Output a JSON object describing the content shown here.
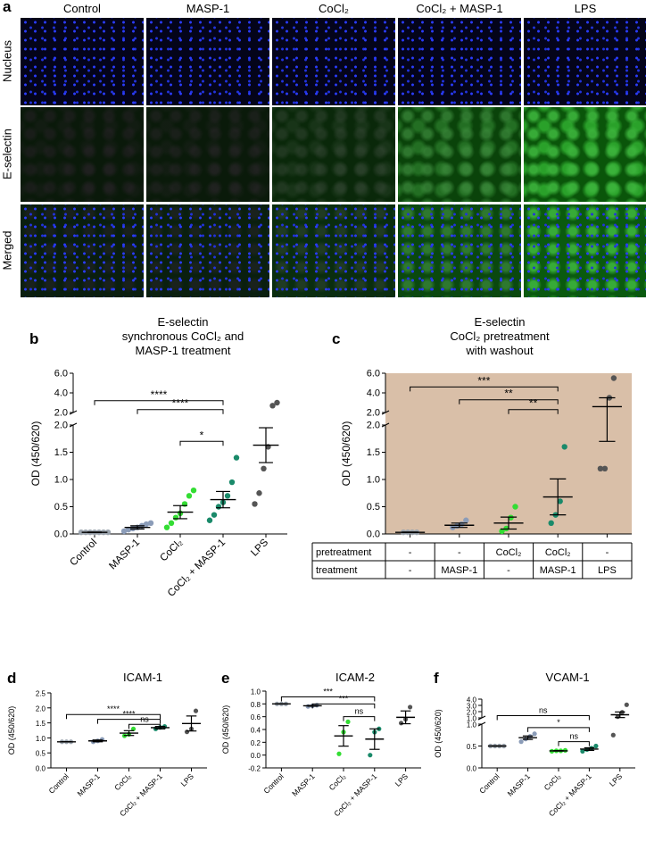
{
  "panel_a": {
    "letter": "a",
    "columns": [
      "Control",
      "MASP-1",
      "CoCl₂",
      "CoCl₂ + MASP-1",
      "LPS"
    ],
    "rows": [
      "Nucleus",
      "E-selectin",
      "Merged"
    ],
    "e_selectin_intensity": [
      0.0,
      0.02,
      0.25,
      0.7,
      1.0
    ]
  },
  "chart_data": [
    {
      "id": "b",
      "letter": "b",
      "type": "scatter",
      "title_lines": [
        "E-selectin",
        "synchronous CoCl₂ and",
        "MASP-1 treatment"
      ],
      "ylabel": "OD (450/620)",
      "categories": [
        "Control",
        "MASP-1",
        "CoCl₂",
        "CoCl₂ + MASP-1",
        "LPS"
      ],
      "colors": [
        "#9aa3ad",
        "#8b9cb8",
        "#33dd33",
        "#1a8a6a",
        "#555555"
      ],
      "axis_lower": {
        "range": [
          0,
          2.0
        ],
        "ticks": [
          "0.0",
          "0.5",
          "1.0",
          "1.5",
          "2.0"
        ]
      },
      "axis_upper": {
        "range": [
          2.0,
          6.0
        ],
        "ticks": [
          "2.0",
          "4.0",
          "6.0"
        ]
      },
      "points": [
        [
          0.03,
          0.03,
          0.03,
          0.03,
          0.03,
          0.03,
          0.03
        ],
        [
          0.05,
          0.08,
          0.1,
          0.12,
          0.15,
          0.18,
          0.2
        ],
        [
          0.12,
          0.2,
          0.3,
          0.38,
          0.55,
          0.7,
          0.8
        ],
        [
          0.25,
          0.35,
          0.5,
          0.58,
          0.7,
          0.95,
          1.4
        ],
        [
          0.55,
          0.75,
          1.2,
          1.6,
          2.7,
          3.0
        ]
      ],
      "means": [
        0.03,
        0.12,
        0.4,
        0.63,
        1.63
      ],
      "sem": [
        0.005,
        0.03,
        0.12,
        0.15,
        0.32
      ],
      "significance": [
        {
          "from": 0,
          "to": 3,
          "label": "****",
          "y": 3.2
        },
        {
          "from": 1,
          "to": 3,
          "label": "****",
          "y": 2.3
        },
        {
          "from": 2,
          "to": 3,
          "label": "*",
          "y": 1.7
        }
      ]
    },
    {
      "id": "c",
      "letter": "c",
      "type": "scatter",
      "title_lines": [
        "E-selectin",
        "CoCl₂ pretreatment",
        "with washout"
      ],
      "ylabel": "OD (450/620)",
      "background": "#d9bfa8",
      "categories": [
        "-",
        "MASP-1",
        "-",
        "MASP-1",
        "LPS"
      ],
      "pretreatment_label": "pretreatment",
      "treatment_label": "treatment",
      "pretreatment": [
        "-",
        "-",
        "CoCl₂",
        "CoCl₂",
        "-"
      ],
      "treatment": [
        "-",
        "MASP-1",
        "-",
        "MASP-1",
        "LPS"
      ],
      "colors": [
        "#9aa3ad",
        "#8b9cb8",
        "#33dd33",
        "#1a8a6a",
        "#555555"
      ],
      "axis_lower": {
        "range": [
          0,
          2.0
        ],
        "ticks": [
          "0.0",
          "0.5",
          "1.0",
          "1.5",
          "2.0"
        ]
      },
      "axis_upper": {
        "range": [
          2.0,
          6.0
        ],
        "ticks": [
          "2.0",
          "4.0",
          "6.0"
        ]
      },
      "points": [
        [
          0.03,
          0.03,
          0.03,
          0.03
        ],
        [
          0.12,
          0.15,
          0.18,
          0.25
        ],
        [
          0.05,
          0.1,
          0.3,
          0.5
        ],
        [
          0.2,
          0.35,
          0.6,
          1.6
        ],
        [
          1.2,
          1.2,
          3.5,
          5.5
        ]
      ],
      "means": [
        0.03,
        0.16,
        0.2,
        0.68,
        2.6
      ],
      "sem": [
        0.005,
        0.04,
        0.11,
        0.33,
        0.9
      ],
      "significance": [
        {
          "from": 0,
          "to": 3,
          "label": "***",
          "y": 4.6
        },
        {
          "from": 1,
          "to": 3,
          "label": "**",
          "y": 3.3
        },
        {
          "from": 2,
          "to": 3,
          "label": "**",
          "y": 2.3
        }
      ]
    },
    {
      "id": "d",
      "letter": "d",
      "type": "scatter",
      "title": "ICAM-1",
      "ylabel": "OD (450/620)",
      "categories": [
        "Control",
        "MASP-1",
        "CoCl₂",
        "CoCl₂ + MASP-1",
        "LPS"
      ],
      "colors": [
        "#9aa3ad",
        "#8b9cb8",
        "#33dd33",
        "#1a8a6a",
        "#555555"
      ],
      "ylim": [
        0,
        2.5
      ],
      "ticks": [
        "0.0",
        "0.5",
        "1.0",
        "1.5",
        "2.0",
        "2.5"
      ],
      "points": [
        [
          0.87,
          0.87,
          0.87
        ],
        [
          0.87,
          0.9,
          0.95
        ],
        [
          1.07,
          1.12,
          1.3
        ],
        [
          1.3,
          1.35,
          1.38
        ],
        [
          1.2,
          1.3,
          1.9
        ]
      ],
      "means": [
        0.87,
        0.9,
        1.16,
        1.34,
        1.48
      ],
      "sem": [
        0.003,
        0.03,
        0.08,
        0.04,
        0.25
      ],
      "significance": [
        {
          "from": 0,
          "to": 3,
          "label": "****",
          "y": 1.78
        },
        {
          "from": 1,
          "to": 3,
          "label": "****",
          "y": 1.62
        },
        {
          "from": 2,
          "to": 3,
          "label": "ns",
          "y": 1.45
        }
      ]
    },
    {
      "id": "e",
      "letter": "e",
      "type": "scatter",
      "title": "ICAM-2",
      "ylabel": "OD (450/620)",
      "categories": [
        "Control",
        "MASP-1",
        "CoCl₂",
        "CoCl₂ + MASP-1",
        "LPS"
      ],
      "colors": [
        "#9aa3ad",
        "#8b9cb8",
        "#33dd33",
        "#1a8a6a",
        "#555555"
      ],
      "ylim": [
        -0.2,
        1.0
      ],
      "ticks": [
        "-0.2",
        "0.0",
        "0.2",
        "0.4",
        "0.6",
        "0.8",
        "1.0"
      ],
      "points": [
        [
          0.8,
          0.8,
          0.8
        ],
        [
          0.76,
          0.77,
          0.78
        ],
        [
          0.02,
          0.36,
          0.52
        ],
        [
          0.0,
          0.36,
          0.41
        ],
        [
          0.5,
          0.56,
          0.75
        ]
      ],
      "means": [
        0.8,
        0.77,
        0.3,
        0.25,
        0.59
      ],
      "sem": [
        0.002,
        0.006,
        0.16,
        0.16,
        0.1
      ],
      "significance": [
        {
          "from": 0,
          "to": 3,
          "label": "***",
          "y": 0.91
        },
        {
          "from": 1,
          "to": 3,
          "label": "***",
          "y": 0.8
        },
        {
          "from": 2,
          "to": 3,
          "label": "ns",
          "y": 0.6
        }
      ]
    },
    {
      "id": "f",
      "letter": "f",
      "type": "scatter",
      "title": "VCAM-1",
      "ylabel": "OD (450/620)",
      "categories": [
        "Control",
        "MASP-1",
        "CoCl₂",
        "CoCl₂ + MASP-1",
        "LPS"
      ],
      "colors": [
        "#9aa3ad",
        "#8b9cb8",
        "#33dd33",
        "#1a8a6a",
        "#555555"
      ],
      "axis_lower": {
        "range": [
          0,
          1.0
        ],
        "ticks": [
          "0.0",
          "0.5",
          "1.0"
        ]
      },
      "axis_upper": {
        "range": [
          1.0,
          4.0
        ],
        "ticks": [
          "1.0",
          "2.0",
          "3.0",
          "4.0"
        ]
      },
      "points": [
        [
          0.5,
          0.5,
          0.5,
          0.5
        ],
        [
          0.6,
          0.66,
          0.72,
          0.78
        ],
        [
          0.38,
          0.39,
          0.39,
          0.4
        ],
        [
          0.38,
          0.42,
          0.45,
          0.5
        ],
        [
          0.75,
          1.2,
          1.9,
          3.1
        ]
      ],
      "means": [
        0.5,
        0.69,
        0.39,
        0.43,
        1.5
      ],
      "sem": [
        0.002,
        0.04,
        0.005,
        0.03,
        0.45
      ],
      "significance": [
        {
          "from": 0,
          "to": 3,
          "label": "ns",
          "y": 1.35
        },
        {
          "from": 1,
          "to": 3,
          "label": "*",
          "y": 0.92
        },
        {
          "from": 2,
          "to": 3,
          "label": "ns",
          "y": 0.6
        }
      ]
    }
  ]
}
